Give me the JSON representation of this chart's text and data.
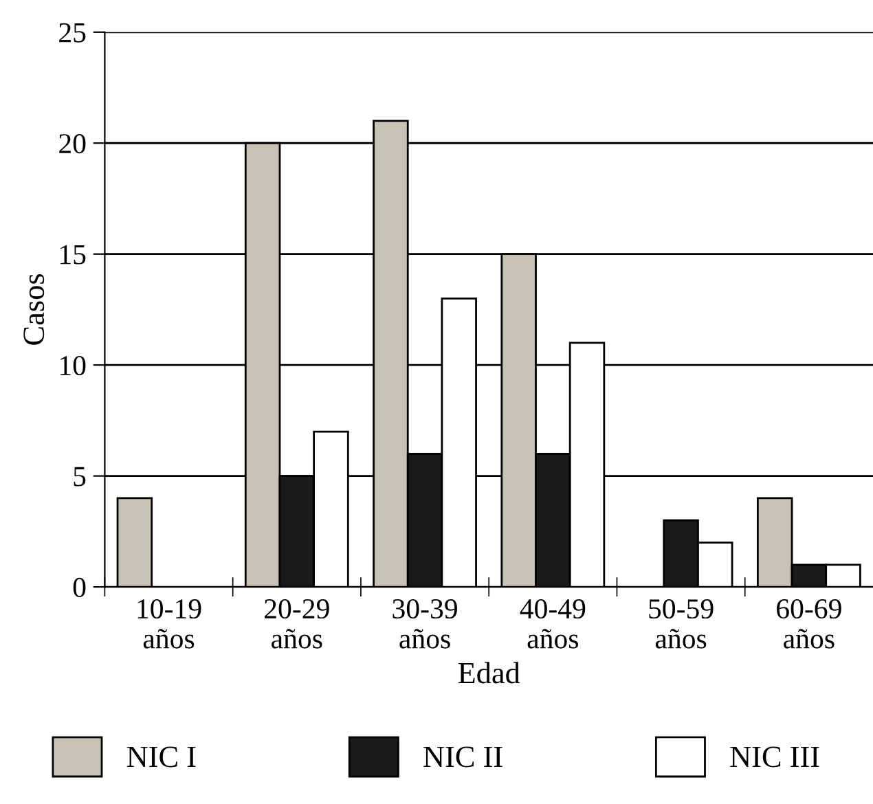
{
  "chart_data": {
    "type": "bar",
    "xlabel": "Edad",
    "ylabel": "Casos",
    "categories": [
      "10-19\naños",
      "20-29\naños",
      "30-39\naños",
      "40-49\naños",
      "50-59\naños",
      "60-69\naños"
    ],
    "series": [
      {
        "name": "NIC I",
        "color": "#c8c2b4",
        "values": [
          4,
          20,
          21,
          15,
          0,
          4
        ]
      },
      {
        "name": "NIC II",
        "color": "#1a1a1a",
        "values": [
          0,
          5,
          6,
          6,
          3,
          1
        ]
      },
      {
        "name": "NIC III",
        "color": "#ffffff",
        "values": [
          0,
          7,
          13,
          11,
          2,
          1
        ]
      }
    ],
    "ylim": [
      0,
      25
    ],
    "yticks": [
      0,
      5,
      10,
      15,
      20,
      25
    ],
    "grid": "y",
    "legend": "bottom"
  }
}
